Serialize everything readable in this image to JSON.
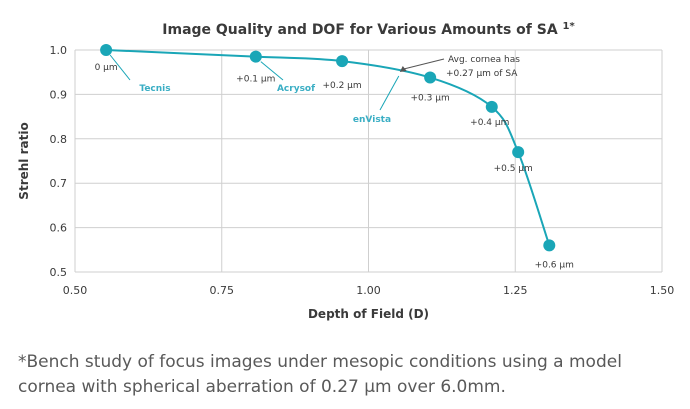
{
  "chart_data": {
    "type": "line",
    "title": "Image Quality and DOF for Various Amounts of SA",
    "title_superscript": "1",
    "title_suffix": "*",
    "xlabel": "Depth of Field (D)",
    "ylabel": "Strehl ratio",
    "xlim": [
      0.5,
      1.5
    ],
    "ylim": [
      0.5,
      1.0
    ],
    "x_ticks": [
      "0.50",
      "0.75",
      "1.00",
      "1.25",
      "1.50"
    ],
    "y_ticks": [
      "0.5",
      "0.6",
      "0.7",
      "0.8",
      "0.9",
      "1.0"
    ],
    "grid": true,
    "series": [
      {
        "points": [
          {
            "x": 0.553,
            "y": 1.0,
            "label": "0 µm"
          },
          {
            "x": 0.808,
            "y": 0.985,
            "label": "+0.1 µm"
          },
          {
            "x": 0.955,
            "y": 0.975,
            "label": "+0.2 µm"
          },
          {
            "x": 1.105,
            "y": 0.938,
            "label": "+0.3 µm"
          },
          {
            "x": 1.21,
            "y": 0.872,
            "label": "+0.4 µm"
          },
          {
            "x": 1.255,
            "y": 0.77,
            "label": "+0.5 µm"
          },
          {
            "x": 1.308,
            "y": 0.56,
            "label": "+0.6 µm"
          }
        ]
      }
    ],
    "annotations": [
      {
        "text": "Tecnis",
        "x": 0.553,
        "y": 1.0
      },
      {
        "text": "Acrysof",
        "x": 0.808,
        "y": 0.985
      },
      {
        "text": "enVista",
        "x": 1.055,
        "y": 0.955
      },
      {
        "text_lines": [
          "Avg. cornea has",
          "+0.27 µm of SA"
        ],
        "x": 1.055,
        "y": 0.955
      }
    ],
    "colors": {
      "series": "#1aa6b7",
      "annotation_text": "#3aaec4",
      "grid": "#cfcfcf",
      "text": "#3a3a3a"
    }
  },
  "footnote": {
    "lines": [
      "*Bench study of focus images under mesopic conditions using a model",
      "cornea with spherical aberration of 0.27 µm over 6.0mm."
    ]
  }
}
